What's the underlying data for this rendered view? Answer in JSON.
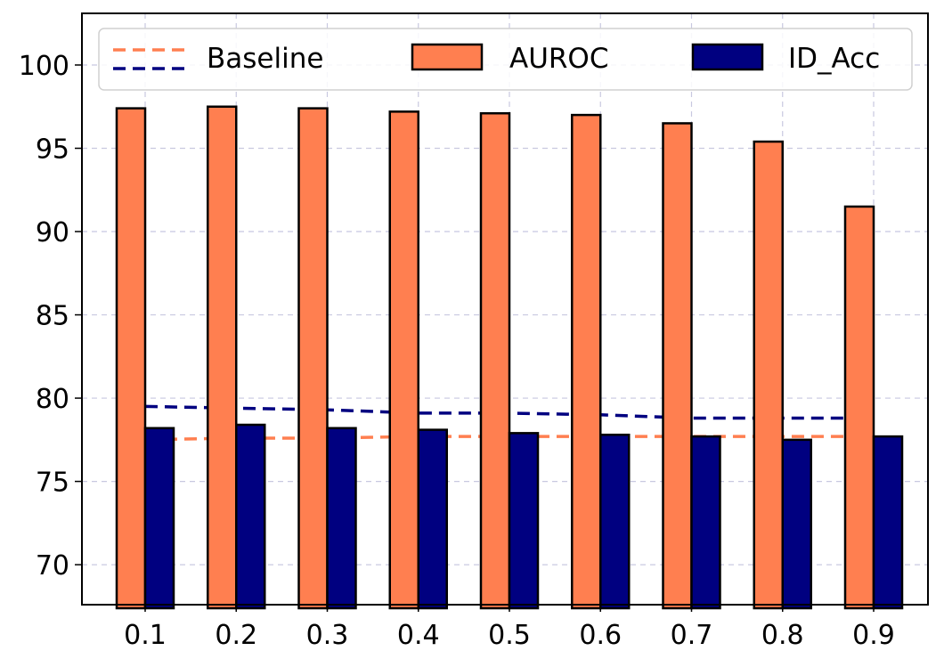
{
  "chart_data": {
    "type": "bar",
    "title": "",
    "xlabel": "",
    "ylabel": "",
    "categories": [
      "0.1",
      "0.2",
      "0.3",
      "0.4",
      "0.5",
      "0.6",
      "0.7",
      "0.8",
      "0.9"
    ],
    "series": [
      {
        "name": "AUROC",
        "color": "#ff7f50",
        "values": [
          97.4,
          97.5,
          97.4,
          97.2,
          97.1,
          97.0,
          96.5,
          95.4,
          91.5
        ]
      },
      {
        "name": "ID_Acc",
        "color": "#000080",
        "values": [
          78.2,
          78.4,
          78.2,
          78.1,
          77.9,
          77.8,
          77.7,
          77.5,
          77.7
        ]
      }
    ],
    "baselines": [
      {
        "name": "Baseline",
        "color": "#ff7f50",
        "style": "dashed",
        "values": [
          77.5,
          77.6,
          77.6,
          77.7,
          77.7,
          77.7,
          77.7,
          77.7,
          77.7
        ]
      },
      {
        "name": "",
        "color": "#000080",
        "style": "dashed",
        "values": [
          79.5,
          79.4,
          79.3,
          79.1,
          79.1,
          79.0,
          78.8,
          78.8,
          78.8
        ]
      }
    ],
    "ylim": [
      67.6,
      103.1
    ],
    "yticks": [
      "70",
      "75",
      "80",
      "85",
      "90",
      "95",
      "100"
    ],
    "grid": true,
    "legend": {
      "placement": "top",
      "entries": [
        "Baseline",
        "AUROC",
        "ID_Acc"
      ]
    }
  }
}
